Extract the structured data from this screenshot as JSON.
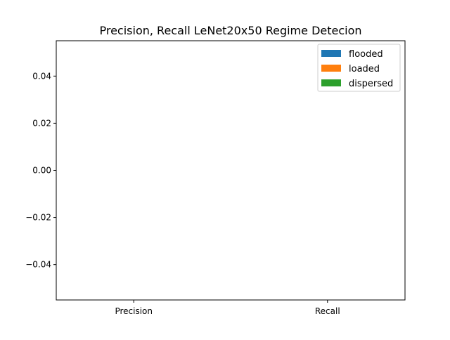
{
  "chart_data": {
    "type": "bar",
    "title": "Precision, Recall LeNet20x50 Regime Detecion",
    "xlabel": "",
    "ylabel": "",
    "categories": [
      "Precision",
      "Recall"
    ],
    "series": [
      {
        "name": "flooded",
        "values": [
          0,
          0
        ],
        "color": "#1f77b4"
      },
      {
        "name": "loaded",
        "values": [
          0,
          0
        ],
        "color": "#ff7f0e"
      },
      {
        "name": "dispersed",
        "values": [
          0,
          0
        ],
        "color": "#2ca02c"
      }
    ],
    "ylim": [
      -0.055,
      0.055
    ],
    "yticks": [
      -0.04,
      -0.02,
      0.0,
      0.02,
      0.04
    ],
    "ytick_labels": [
      "−0.04",
      "−0.02",
      "0.00",
      "0.02",
      "0.04"
    ],
    "grid": false,
    "legend_position": "top-right"
  }
}
